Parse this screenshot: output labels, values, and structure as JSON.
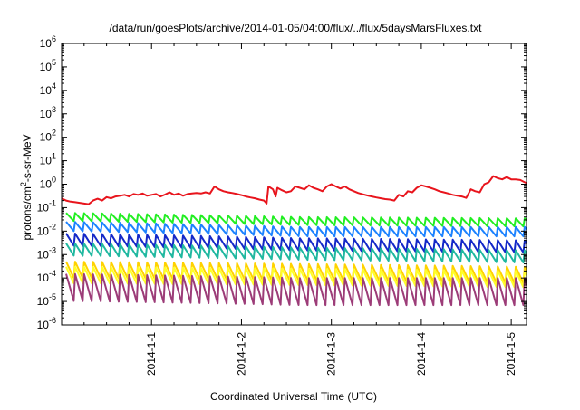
{
  "chart_data": {
    "type": "line",
    "title": "/data/run/goesPlots/archive/2014-01-05/04:00/flux/../flux/5daysMarsFluxes.txt",
    "xlabel": "Coordinated Universal Time (UTC)",
    "ylabel": {
      "base": "protons/cm",
      "sup": "2",
      "rest": "-s-sr-MeV"
    },
    "y_scale": "log",
    "ylim": [
      1e-06,
      1000000.0
    ],
    "y_ticks": [
      {
        "base": "10",
        "exp": "-6"
      },
      {
        "base": "10",
        "exp": "-5"
      },
      {
        "base": "10",
        "exp": "-4"
      },
      {
        "base": "10",
        "exp": "-3"
      },
      {
        "base": "10",
        "exp": "-2"
      },
      {
        "base": "10",
        "exp": "-1"
      },
      {
        "base": "10",
        "exp": "0"
      },
      {
        "base": "10",
        "exp": "1"
      },
      {
        "base": "10",
        "exp": "2"
      },
      {
        "base": "10",
        "exp": "3"
      },
      {
        "base": "10",
        "exp": "4"
      },
      {
        "base": "10",
        "exp": "5"
      },
      {
        "base": "10",
        "exp": "6"
      }
    ],
    "x_start": "2013-12-31 00:00",
    "xlim_days": [
      0,
      5.17
    ],
    "x_ticks": [
      {
        "label": "2014-1-1",
        "day": 1
      },
      {
        "label": "2014-1-2",
        "day": 2
      },
      {
        "label": "2014-1-3",
        "day": 3
      },
      {
        "label": "2014-1-4",
        "day": 4
      },
      {
        "label": "2014-1-5",
        "day": 5
      }
    ],
    "grid": false,
    "legend": "none",
    "series": [
      {
        "color": "#e8141c",
        "style": "smooth-jumps",
        "points": [
          [
            0.0,
            0.25
          ],
          [
            0.05,
            0.2
          ],
          [
            0.1,
            0.18
          ],
          [
            0.15,
            0.17
          ],
          [
            0.2,
            0.16
          ],
          [
            0.25,
            0.15
          ],
          [
            0.3,
            0.14
          ],
          [
            0.35,
            0.2
          ],
          [
            0.4,
            0.24
          ],
          [
            0.45,
            0.2
          ],
          [
            0.5,
            0.28
          ],
          [
            0.55,
            0.25
          ],
          [
            0.6,
            0.3
          ],
          [
            0.65,
            0.32
          ],
          [
            0.7,
            0.35
          ],
          [
            0.75,
            0.3
          ],
          [
            0.8,
            0.38
          ],
          [
            0.85,
            0.35
          ],
          [
            0.9,
            0.4
          ],
          [
            0.95,
            0.32
          ],
          [
            1.0,
            0.35
          ],
          [
            1.05,
            0.38
          ],
          [
            1.1,
            0.3
          ],
          [
            1.15,
            0.36
          ],
          [
            1.2,
            0.45
          ],
          [
            1.25,
            0.35
          ],
          [
            1.3,
            0.4
          ],
          [
            1.35,
            0.32
          ],
          [
            1.4,
            0.38
          ],
          [
            1.45,
            0.4
          ],
          [
            1.5,
            0.42
          ],
          [
            1.55,
            0.4
          ],
          [
            1.6,
            0.45
          ],
          [
            1.65,
            0.4
          ],
          [
            1.7,
            0.8
          ],
          [
            1.75,
            0.6
          ],
          [
            1.8,
            0.5
          ],
          [
            1.85,
            0.45
          ],
          [
            1.9,
            0.42
          ],
          [
            1.95,
            0.38
          ],
          [
            2.0,
            0.34
          ],
          [
            2.05,
            0.3
          ],
          [
            2.1,
            0.27
          ],
          [
            2.15,
            0.25
          ],
          [
            2.2,
            0.22
          ],
          [
            2.25,
            0.2
          ],
          [
            2.28,
            0.15
          ],
          [
            2.3,
            0.8
          ],
          [
            2.35,
            0.6
          ],
          [
            2.38,
            0.3
          ],
          [
            2.4,
            0.7
          ],
          [
            2.45,
            0.55
          ],
          [
            2.5,
            0.45
          ],
          [
            2.55,
            0.5
          ],
          [
            2.6,
            0.8
          ],
          [
            2.65,
            0.7
          ],
          [
            2.7,
            0.6
          ],
          [
            2.75,
            0.9
          ],
          [
            2.8,
            0.7
          ],
          [
            2.85,
            0.6
          ],
          [
            2.9,
            0.5
          ],
          [
            2.95,
            0.8
          ],
          [
            3.0,
            1.0
          ],
          [
            3.05,
            0.8
          ],
          [
            3.1,
            0.65
          ],
          [
            3.15,
            0.8
          ],
          [
            3.2,
            0.6
          ],
          [
            3.25,
            0.5
          ],
          [
            3.3,
            0.42
          ],
          [
            3.35,
            0.37
          ],
          [
            3.4,
            0.33
          ],
          [
            3.45,
            0.3
          ],
          [
            3.5,
            0.27
          ],
          [
            3.55,
            0.25
          ],
          [
            3.6,
            0.23
          ],
          [
            3.65,
            0.22
          ],
          [
            3.7,
            0.2
          ],
          [
            3.75,
            0.35
          ],
          [
            3.8,
            0.3
          ],
          [
            3.85,
            0.5
          ],
          [
            3.9,
            0.45
          ],
          [
            3.95,
            0.7
          ],
          [
            4.0,
            0.9
          ],
          [
            4.05,
            0.8
          ],
          [
            4.1,
            0.7
          ],
          [
            4.15,
            0.6
          ],
          [
            4.2,
            0.5
          ],
          [
            4.25,
            0.45
          ],
          [
            4.3,
            0.4
          ],
          [
            4.35,
            0.35
          ],
          [
            4.4,
            0.32
          ],
          [
            4.45,
            0.3
          ],
          [
            4.5,
            0.26
          ],
          [
            4.55,
            0.6
          ],
          [
            4.6,
            0.5
          ],
          [
            4.65,
            0.45
          ],
          [
            4.7,
            1.0
          ],
          [
            4.75,
            1.2
          ],
          [
            4.8,
            2.2
          ],
          [
            4.85,
            1.8
          ],
          [
            4.9,
            1.6
          ],
          [
            4.95,
            2.0
          ],
          [
            5.0,
            1.6
          ],
          [
            5.05,
            1.6
          ],
          [
            5.1,
            1.5
          ],
          [
            5.15,
            1.2
          ],
          [
            5.17,
            1.1
          ]
        ]
      },
      {
        "color": "#22ee22",
        "style": "sawtooth",
        "period_days": 0.1,
        "start_day": 0.05,
        "peak_start": 0.06,
        "peak_mid": 0.04,
        "peak_end": 0.035,
        "drop_factor": 0.45
      },
      {
        "color": "#1c82ff",
        "style": "sawtooth",
        "period_days": 0.1,
        "start_day": 0.05,
        "peak_start": 0.025,
        "peak_mid": 0.015,
        "peak_end": 0.015,
        "drop_factor": 0.4
      },
      {
        "color": "#1428c8",
        "style": "sawtooth",
        "period_days": 0.1,
        "start_day": 0.05,
        "peak_start": 0.008,
        "peak_mid": 0.005,
        "peak_end": 0.004,
        "drop_factor": 0.3
      },
      {
        "color": "#20b8a0",
        "style": "sawtooth",
        "period_days": 0.1,
        "start_day": 0.05,
        "peak_start": 0.003,
        "peak_mid": 0.002,
        "peak_end": 0.0015,
        "drop_factor": 0.3
      },
      {
        "color": "#ffd200",
        "style": "sawtooth",
        "period_days": 0.1,
        "start_day": 0.05,
        "peak_start": 0.0005,
        "peak_mid": 0.0004,
        "peak_end": 0.0003,
        "drop_factor": 0.2
      },
      {
        "color": "#ffff28",
        "style": "sawtooth",
        "period_days": 0.1,
        "start_day": 0.05,
        "peak_start": 0.0003,
        "peak_mid": 0.00025,
        "peak_end": 0.0002,
        "drop_factor": 0.2
      },
      {
        "color": "#9c3c78",
        "style": "sawtooth",
        "period_days": 0.1,
        "start_day": 0.05,
        "peak_start": 0.00015,
        "peak_mid": 0.0001,
        "peak_end": 0.0001,
        "drop_factor": 0.07
      }
    ]
  }
}
